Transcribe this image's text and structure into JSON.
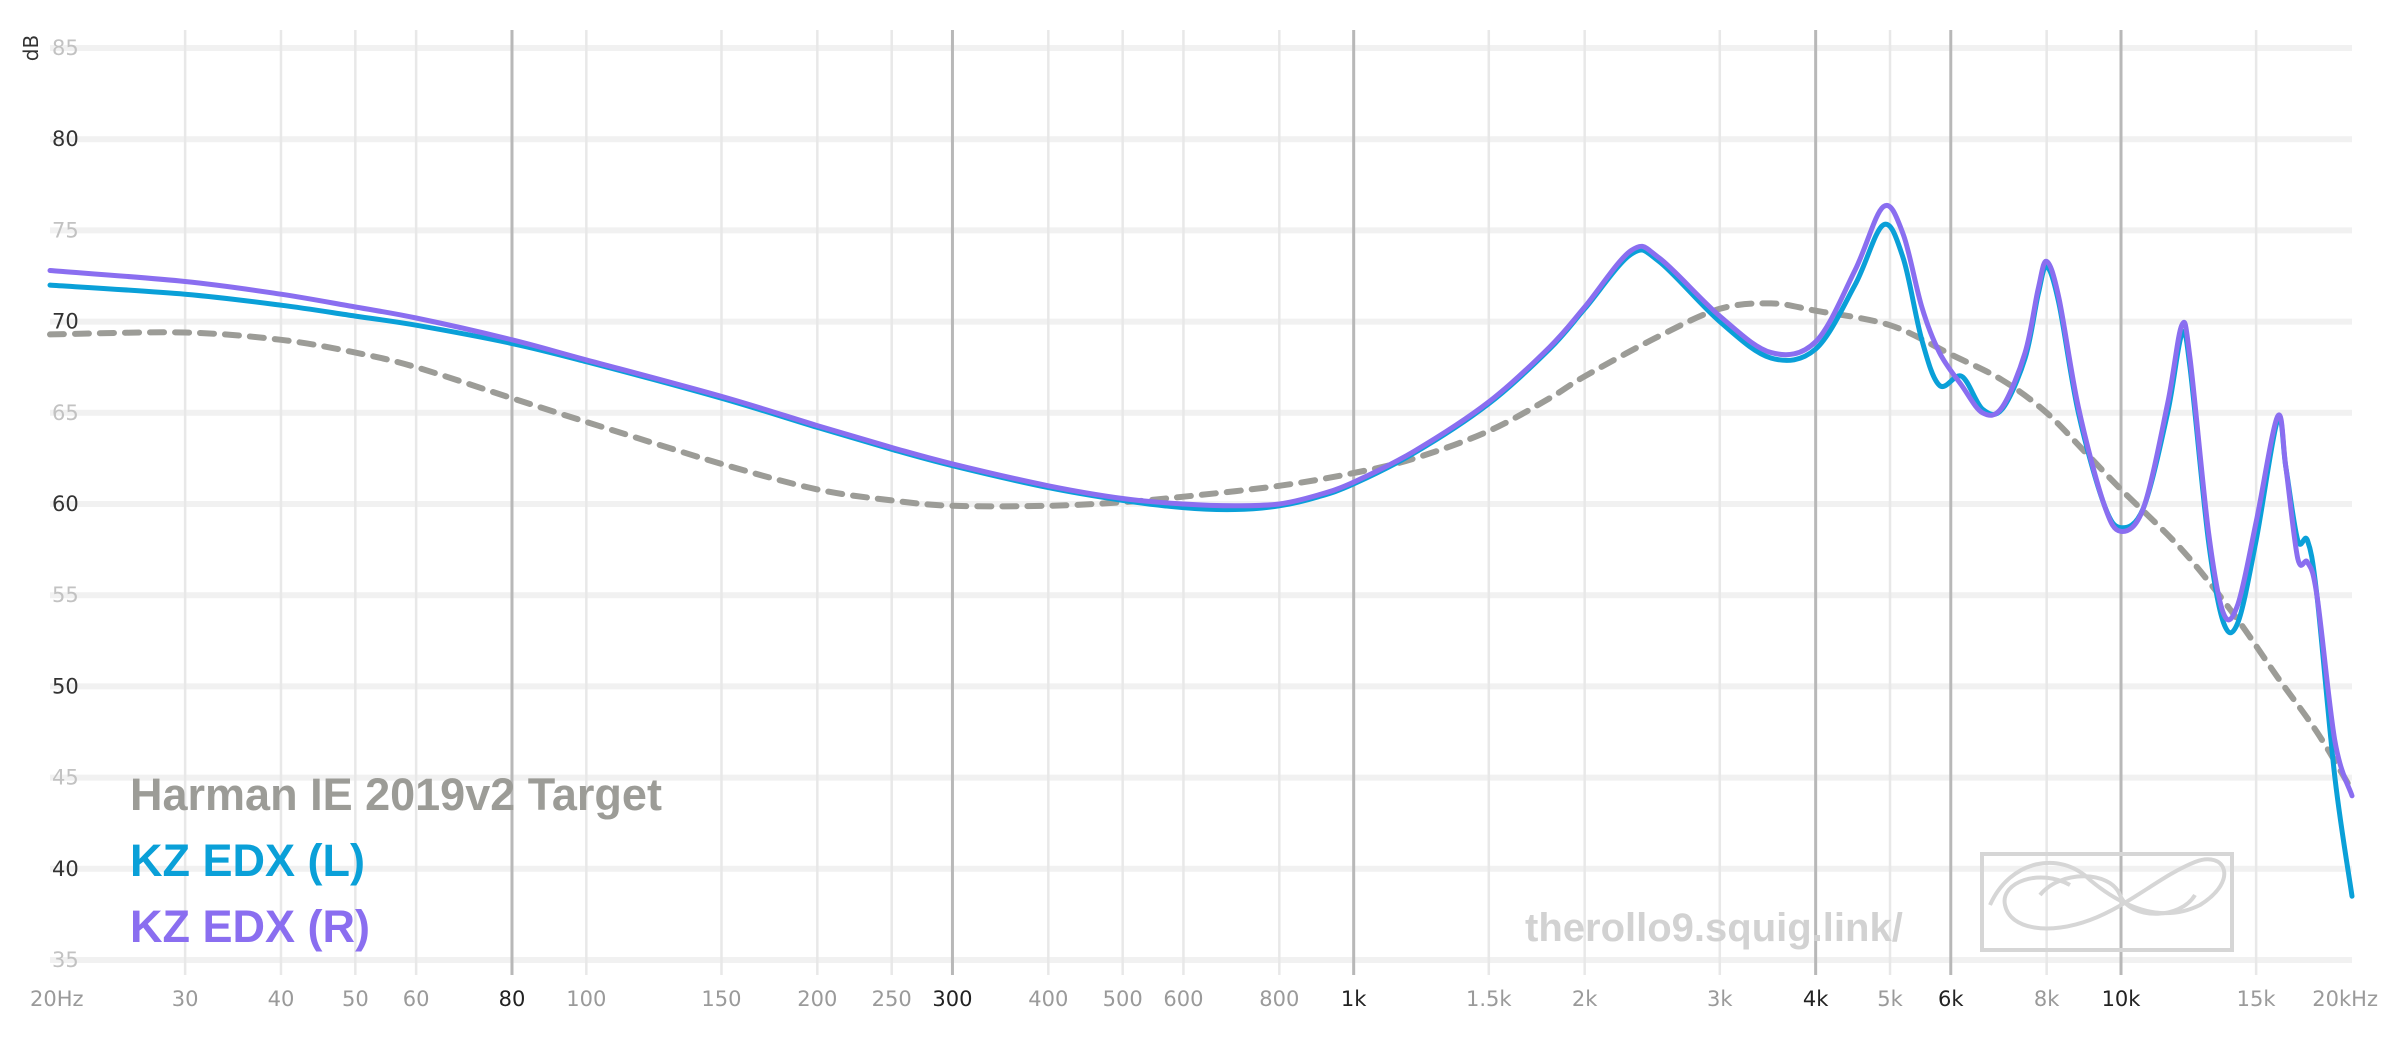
{
  "chart_data": {
    "type": "line",
    "title": "",
    "xlabel": "",
    "ylabel": "dB",
    "x_scale": "log",
    "xlim": [
      20,
      20000
    ],
    "ylim": [
      35,
      85
    ],
    "grid": true,
    "legend_placement": "bottom-left",
    "x_ticks": [
      {
        "value": 20,
        "label": "20Hz",
        "emph": false
      },
      {
        "value": 30,
        "label": "30",
        "emph": false
      },
      {
        "value": 40,
        "label": "40",
        "emph": false
      },
      {
        "value": 50,
        "label": "50",
        "emph": false
      },
      {
        "value": 60,
        "label": "60",
        "emph": false
      },
      {
        "value": 80,
        "label": "80",
        "emph": true
      },
      {
        "value": 100,
        "label": "100",
        "emph": false
      },
      {
        "value": 150,
        "label": "150",
        "emph": false
      },
      {
        "value": 200,
        "label": "200",
        "emph": false
      },
      {
        "value": 250,
        "label": "250",
        "emph": false
      },
      {
        "value": 300,
        "label": "300",
        "emph": true
      },
      {
        "value": 400,
        "label": "400",
        "emph": false
      },
      {
        "value": 500,
        "label": "500",
        "emph": false
      },
      {
        "value": 600,
        "label": "600",
        "emph": false
      },
      {
        "value": 800,
        "label": "800",
        "emph": false
      },
      {
        "value": 1000,
        "label": "1k",
        "emph": true
      },
      {
        "value": 1500,
        "label": "1.5k",
        "emph": false
      },
      {
        "value": 2000,
        "label": "2k",
        "emph": false
      },
      {
        "value": 3000,
        "label": "3k",
        "emph": false
      },
      {
        "value": 4000,
        "label": "4k",
        "emph": true
      },
      {
        "value": 5000,
        "label": "5k",
        "emph": false
      },
      {
        "value": 6000,
        "label": "6k",
        "emph": true
      },
      {
        "value": 8000,
        "label": "8k",
        "emph": false
      },
      {
        "value": 10000,
        "label": "10k",
        "emph": true
      },
      {
        "value": 15000,
        "label": "15k",
        "emph": false
      },
      {
        "value": 20000,
        "label": "20kHz",
        "emph": false
      }
    ],
    "y_ticks": [
      {
        "value": 85,
        "label": "85",
        "emph": false
      },
      {
        "value": 80,
        "label": "80",
        "emph": true
      },
      {
        "value": 75,
        "label": "75",
        "emph": false
      },
      {
        "value": 70,
        "label": "70",
        "emph": true
      },
      {
        "value": 65,
        "label": "65",
        "emph": false
      },
      {
        "value": 60,
        "label": "60",
        "emph": true
      },
      {
        "value": 55,
        "label": "55",
        "emph": false
      },
      {
        "value": 50,
        "label": "50",
        "emph": true
      },
      {
        "value": 45,
        "label": "45",
        "emph": false
      },
      {
        "value": 40,
        "label": "40",
        "emph": true
      },
      {
        "value": 35,
        "label": "35",
        "emph": false
      }
    ],
    "series": [
      {
        "name": "Harman IE 2019v2 Target",
        "color": "#9c9c97",
        "dashed": true,
        "points": [
          [
            20,
            69.3
          ],
          [
            30,
            69.4
          ],
          [
            40,
            69.0
          ],
          [
            50,
            68.3
          ],
          [
            60,
            67.5
          ],
          [
            80,
            65.8
          ],
          [
            100,
            64.5
          ],
          [
            150,
            62.2
          ],
          [
            200,
            60.8
          ],
          [
            250,
            60.2
          ],
          [
            300,
            59.9
          ],
          [
            400,
            59.9
          ],
          [
            500,
            60.1
          ],
          [
            600,
            60.4
          ],
          [
            800,
            61.0
          ],
          [
            1000,
            61.7
          ],
          [
            1200,
            62.5
          ],
          [
            1500,
            64.0
          ],
          [
            1800,
            65.8
          ],
          [
            2000,
            67.0
          ],
          [
            2500,
            69.2
          ],
          [
            3000,
            70.7
          ],
          [
            3500,
            71.0
          ],
          [
            4000,
            70.6
          ],
          [
            5000,
            69.8
          ],
          [
            6000,
            68.2
          ],
          [
            7000,
            66.8
          ],
          [
            8000,
            65.0
          ],
          [
            9000,
            62.8
          ],
          [
            10000,
            60.8
          ],
          [
            12000,
            57.5
          ],
          [
            14000,
            54.0
          ],
          [
            16000,
            50.5
          ],
          [
            18000,
            47.5
          ],
          [
            20000,
            44.3
          ]
        ]
      },
      {
        "name": "KZ EDX (L)",
        "color": "#0aa0d8",
        "dashed": false,
        "points": [
          [
            20,
            72.0
          ],
          [
            30,
            71.5
          ],
          [
            40,
            70.9
          ],
          [
            50,
            70.3
          ],
          [
            60,
            69.8
          ],
          [
            80,
            68.8
          ],
          [
            100,
            67.8
          ],
          [
            150,
            65.8
          ],
          [
            200,
            64.2
          ],
          [
            250,
            63.0
          ],
          [
            300,
            62.1
          ],
          [
            400,
            60.9
          ],
          [
            500,
            60.2
          ],
          [
            600,
            59.8
          ],
          [
            700,
            59.7
          ],
          [
            800,
            59.9
          ],
          [
            900,
            60.4
          ],
          [
            1000,
            61.1
          ],
          [
            1200,
            62.8
          ],
          [
            1500,
            65.5
          ],
          [
            1800,
            68.5
          ],
          [
            2000,
            70.7
          ],
          [
            2300,
            73.7
          ],
          [
            2500,
            73.3
          ],
          [
            3000,
            70.0
          ],
          [
            3500,
            68.0
          ],
          [
            4000,
            68.5
          ],
          [
            4500,
            72.0
          ],
          [
            4900,
            75.3
          ],
          [
            5200,
            73.5
          ],
          [
            5500,
            69.0
          ],
          [
            5800,
            66.5
          ],
          [
            6200,
            67.0
          ],
          [
            6600,
            65.2
          ],
          [
            7000,
            65.2
          ],
          [
            7500,
            68.0
          ],
          [
            7800,
            71.5
          ],
          [
            8000,
            73.0
          ],
          [
            8300,
            71.0
          ],
          [
            8800,
            65.0
          ],
          [
            9500,
            60.0
          ],
          [
            10000,
            58.7
          ],
          [
            10700,
            59.8
          ],
          [
            11500,
            65.0
          ],
          [
            12000,
            69.3
          ],
          [
            12300,
            67.5
          ],
          [
            13000,
            58.0
          ],
          [
            13600,
            53.5
          ],
          [
            14200,
            53.5
          ],
          [
            15000,
            58.0
          ],
          [
            16000,
            64.6
          ],
          [
            16400,
            62.0
          ],
          [
            17000,
            58.0
          ],
          [
            17500,
            58.0
          ],
          [
            18000,
            55.0
          ],
          [
            19000,
            45.0
          ],
          [
            20000,
            38.5
          ]
        ]
      },
      {
        "name": "KZ EDX (R)",
        "color": "#8a6ef0",
        "dashed": false,
        "points": [
          [
            20,
            72.8
          ],
          [
            30,
            72.2
          ],
          [
            40,
            71.5
          ],
          [
            50,
            70.8
          ],
          [
            60,
            70.2
          ],
          [
            80,
            69.0
          ],
          [
            100,
            67.9
          ],
          [
            150,
            65.9
          ],
          [
            200,
            64.3
          ],
          [
            250,
            63.1
          ],
          [
            300,
            62.2
          ],
          [
            400,
            61.0
          ],
          [
            500,
            60.3
          ],
          [
            600,
            60.0
          ],
          [
            700,
            59.9
          ],
          [
            800,
            60.0
          ],
          [
            900,
            60.5
          ],
          [
            1000,
            61.2
          ],
          [
            1200,
            62.9
          ],
          [
            1500,
            65.6
          ],
          [
            1800,
            68.6
          ],
          [
            2000,
            70.8
          ],
          [
            2300,
            73.9
          ],
          [
            2500,
            73.5
          ],
          [
            3000,
            70.3
          ],
          [
            3500,
            68.3
          ],
          [
            4000,
            68.9
          ],
          [
            4500,
            72.8
          ],
          [
            4900,
            76.3
          ],
          [
            5200,
            74.8
          ],
          [
            5500,
            70.8
          ],
          [
            5800,
            68.3
          ],
          [
            6200,
            66.5
          ],
          [
            6600,
            65.0
          ],
          [
            7000,
            65.3
          ],
          [
            7500,
            68.3
          ],
          [
            7800,
            71.8
          ],
          [
            8000,
            73.3
          ],
          [
            8300,
            71.3
          ],
          [
            8800,
            65.3
          ],
          [
            9500,
            60.0
          ],
          [
            10000,
            58.5
          ],
          [
            10700,
            59.8
          ],
          [
            11500,
            65.5
          ],
          [
            12000,
            69.8
          ],
          [
            12300,
            68.0
          ],
          [
            13000,
            58.5
          ],
          [
            13600,
            54.0
          ],
          [
            14200,
            54.5
          ],
          [
            15000,
            59.0
          ],
          [
            16000,
            64.8
          ],
          [
            16400,
            62.0
          ],
          [
            17000,
            57.0
          ],
          [
            17500,
            56.8
          ],
          [
            18000,
            55.0
          ],
          [
            19000,
            47.0
          ],
          [
            20000,
            44.0
          ]
        ]
      }
    ]
  },
  "watermark": "therollo9.squig.link/",
  "logo_icon": "infinity-knot-logo"
}
